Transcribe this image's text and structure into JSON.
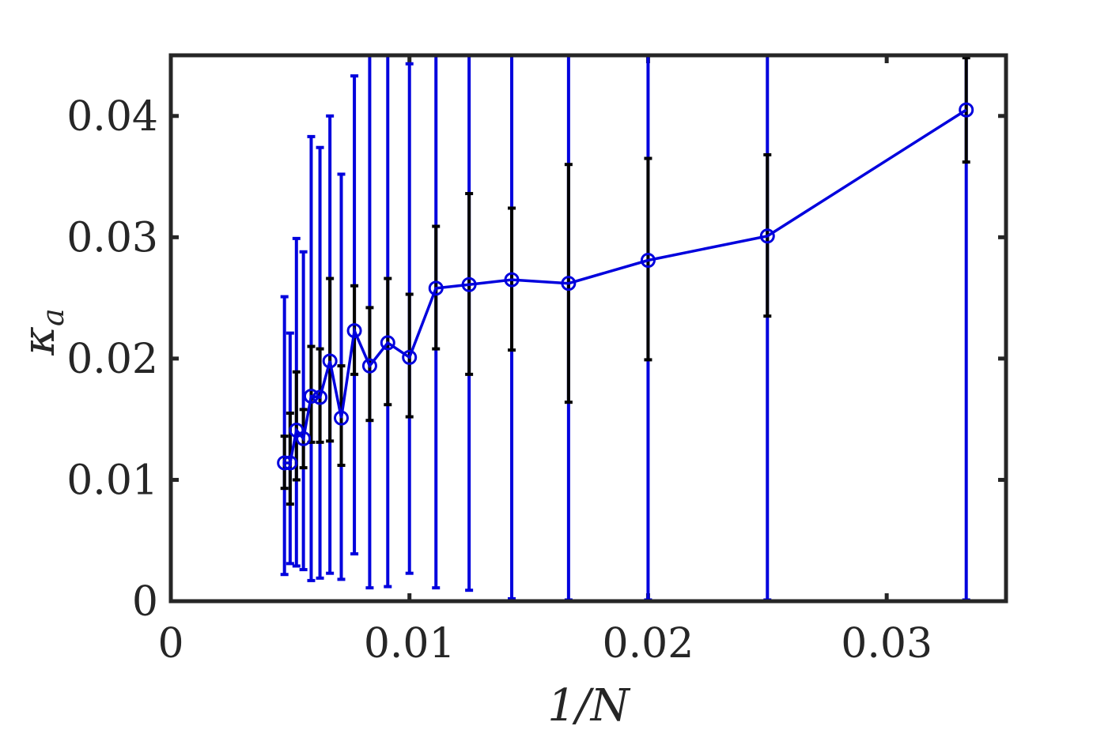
{
  "chart_data": {
    "type": "scatter",
    "xlabel": "1/N",
    "ylabel": "κa",
    "ylabel_main": "κ",
    "ylabel_sub": "a",
    "xlim": [
      0,
      0.035
    ],
    "ylim": [
      0,
      0.045
    ],
    "x_ticks": [
      0,
      0.01,
      0.02,
      0.03
    ],
    "x_tick_labels": [
      "0",
      "0.01",
      "0.02",
      "0.03"
    ],
    "y_ticks": [
      0,
      0.01,
      0.02,
      0.03,
      0.04
    ],
    "y_tick_labels": [
      "0",
      "0.01",
      "0.02",
      "0.03",
      "0.04"
    ],
    "grid": false,
    "legend": "none",
    "colors": {
      "line": "#0000dd",
      "marker": "#0000dd",
      "wide_errorbar": "#0000dd",
      "narrow_errorbar": "#000000",
      "axes": "#262626"
    },
    "series": [
      {
        "marker": "circle",
        "x": [
          0.004762,
          0.005,
          0.005263,
          0.005556,
          0.005882,
          0.00625,
          0.006667,
          0.007143,
          0.007692,
          0.008333,
          0.009091,
          0.01,
          0.011111,
          0.0125,
          0.014286,
          0.016667,
          0.02,
          0.025,
          0.033333
        ],
        "y": [
          0.0114,
          0.0114,
          0.0141,
          0.0134,
          0.0169,
          0.0168,
          0.0198,
          0.0151,
          0.0223,
          0.0194,
          0.0213,
          0.0201,
          0.0258,
          0.0261,
          0.0265,
          0.0262,
          0.0281,
          0.0301,
          0.0405
        ],
        "wide_error": {
          "lower": [
            0.0022,
            0.0031,
            0.0029,
            0.0026,
            0.0017,
            0.0019,
            0.0023,
            0.0018,
            0.0039,
            0.0011,
            0.0012,
            0.0023,
            0.0011,
            0.0009,
            0.0002,
            0.0001,
            0.0001,
            0.0001,
            0.0001
          ],
          "upper": [
            0.0251,
            0.0221,
            0.0299,
            0.0288,
            0.0383,
            0.0374,
            0.04,
            0.0352,
            0.0433,
            0.045,
            0.045,
            0.0443,
            0.045,
            0.045,
            0.045,
            0.045,
            0.045,
            0.045,
            0.045
          ]
        },
        "narrow_error": {
          "lower": [
            0.0093,
            0.008,
            0.01,
            0.011,
            0.0131,
            0.0131,
            0.0132,
            0.0112,
            0.0187,
            0.0149,
            0.0162,
            0.0152,
            0.0208,
            0.0187,
            0.0207,
            0.0164,
            0.0199,
            0.0235,
            0.0362
          ],
          "upper": [
            0.0136,
            0.0155,
            0.0189,
            0.0158,
            0.021,
            0.0208,
            0.0266,
            0.0194,
            0.026,
            0.0242,
            0.0266,
            0.0253,
            0.0309,
            0.0336,
            0.0324,
            0.036,
            0.0365,
            0.0368,
            0.0448
          ]
        }
      }
    ]
  }
}
